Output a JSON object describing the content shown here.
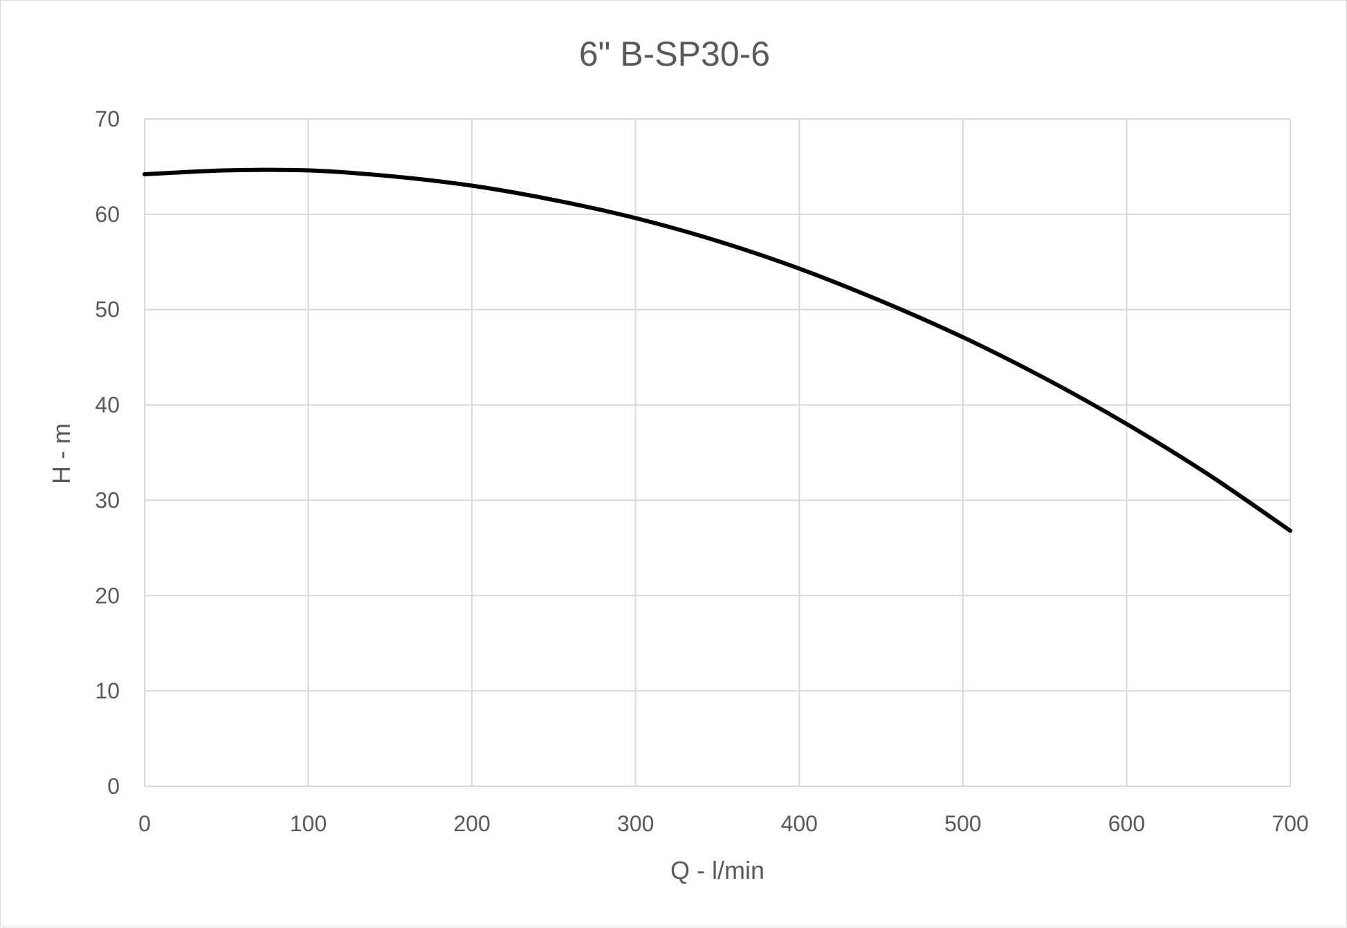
{
  "chart_data": {
    "type": "line",
    "title": "6\" B-SP30-6",
    "xlabel": "Q - l/min",
    "ylabel": "H - m",
    "xlim": [
      0,
      700
    ],
    "ylim": [
      0,
      70
    ],
    "x_ticks": [
      "0",
      "100",
      "200",
      "300",
      "400",
      "500",
      "600",
      "700"
    ],
    "y_ticks": [
      "0",
      "10",
      "20",
      "30",
      "40",
      "50",
      "60",
      "70"
    ],
    "grid": true,
    "legend": "none",
    "series": [
      {
        "color": "#000000",
        "x": [
          0,
          50,
          100,
          150,
          200,
          250,
          300,
          350,
          400,
          450,
          500,
          550,
          600,
          650,
          700
        ],
        "y": [
          64.2,
          64.6,
          64.6,
          64.0,
          63.0,
          61.5,
          59.6,
          57.2,
          54.3,
          50.9,
          47.1,
          42.8,
          38.0,
          32.7,
          26.8
        ]
      }
    ]
  }
}
